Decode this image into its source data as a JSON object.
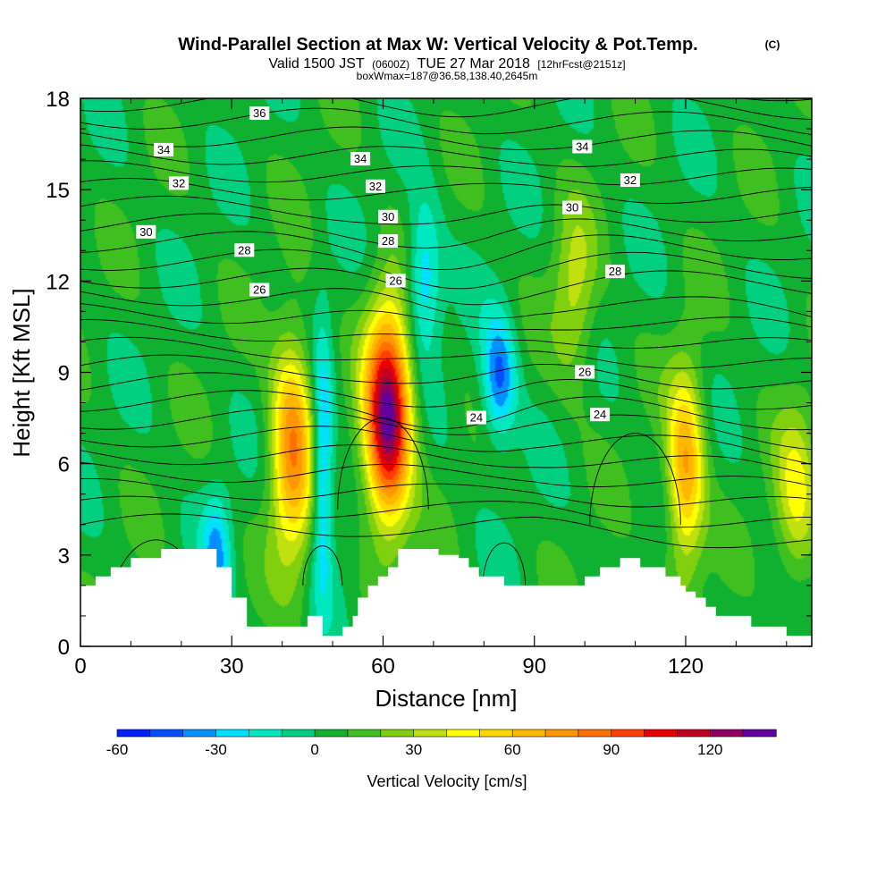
{
  "header": {
    "title": "Wind-Parallel Section at Max W: Vertical Velocity & Pot.Temp.",
    "copyright": "(C)",
    "valid_prefix": "Valid 1500 JST",
    "valid_utc": "(0600Z)",
    "valid_date": "TUE 27 Mar 2018",
    "forecast": "[12hrFcst@2151z]",
    "boxw": "boxWmax=187@36.58,138.40,2645m"
  },
  "colorbar": {
    "title": "Vertical Velocity [cm/s]",
    "tick_labels": [
      "-60",
      "-30",
      "0",
      "30",
      "60",
      "90",
      "120"
    ],
    "colors": [
      "#0020ff",
      "#0050ff",
      "#0090ff",
      "#00e0ff",
      "#00e8c0",
      "#00d080",
      "#10b030",
      "#40c020",
      "#80d010",
      "#c0e010",
      "#ffff00",
      "#ffd800",
      "#ffb800",
      "#ff9800",
      "#ff7000",
      "#ff4000",
      "#e80000",
      "#c00020",
      "#900060",
      "#6000a0"
    ]
  },
  "chart_data": {
    "type": "heatmap",
    "xlabel": "Distance [nm]",
    "ylabel": "Height [Kft MSL]",
    "xlim": [
      0,
      145
    ],
    "ylim": [
      0,
      18
    ],
    "x_ticks": [
      0,
      30,
      60,
      90,
      120
    ],
    "y_ticks": [
      0,
      3,
      6,
      9,
      12,
      15,
      18
    ],
    "background_value_cm_s": 5,
    "updraft_max_cm_s": 130,
    "plumes": [
      {
        "x": 61,
        "y": 7.5,
        "w_cm_s": 130,
        "sx": 3.2,
        "sy": 2.4
      },
      {
        "x": 42,
        "y": 6.5,
        "w_cm_s": 72,
        "sx": 3.0,
        "sy": 2.6
      },
      {
        "x": 120,
        "y": 5.8,
        "w_cm_s": 66,
        "sx": 2.6,
        "sy": 2.3
      },
      {
        "x": 48,
        "y": 6.0,
        "w_cm_s": -45,
        "sx": 1.5,
        "sy": 3.0
      },
      {
        "x": 83,
        "y": 8.8,
        "w_cm_s": -48,
        "sx": 2.4,
        "sy": 1.5
      },
      {
        "x": 68,
        "y": 12.0,
        "w_cm_s": -38,
        "sx": 2.4,
        "sy": 1.8
      },
      {
        "x": 27,
        "y": 3.0,
        "w_cm_s": -35,
        "sx": 2.0,
        "sy": 1.4
      },
      {
        "x": 142,
        "y": 4.8,
        "w_cm_s": 38,
        "sx": 3.0,
        "sy": 2.0
      },
      {
        "x": 98,
        "y": 11.5,
        "w_cm_s": 30,
        "sx": 3.0,
        "sy": 2.0
      }
    ],
    "terrain": {
      "x": [
        0,
        3,
        6,
        10,
        16,
        23,
        27,
        30,
        33,
        39,
        45,
        48,
        50,
        52,
        54,
        55,
        57,
        59,
        61,
        63,
        65,
        68,
        71,
        75,
        77,
        79,
        84,
        87,
        89,
        92,
        96,
        100,
        103,
        107,
        111,
        116,
        119,
        120,
        122,
        124,
        126,
        129,
        133,
        136,
        139,
        140,
        142,
        145
      ],
      "height_kft": [
        2.0,
        2.3,
        2.6,
        2.9,
        3.2,
        3.2,
        2.6,
        1.6,
        0.65,
        0.65,
        1.0,
        0.35,
        0.35,
        0.65,
        1.0,
        1.6,
        2.0,
        2.3,
        2.6,
        3.2,
        3.2,
        3.2,
        3.0,
        2.9,
        2.6,
        2.3,
        2.0,
        2.0,
        2.0,
        2.0,
        2.0,
        2.3,
        2.6,
        2.9,
        2.6,
        2.3,
        2.0,
        1.8,
        1.6,
        1.3,
        1.0,
        1.0,
        0.65,
        0.65,
        0.65,
        0.35,
        0.35,
        0.35
      ]
    },
    "contour_labels": [
      {
        "value": "36",
        "x": 35.5,
        "y": 17.5
      },
      {
        "value": "34",
        "x": 16.5,
        "y": 16.3
      },
      {
        "value": "34",
        "x": 55.5,
        "y": 16.0
      },
      {
        "value": "34",
        "x": 99.5,
        "y": 16.4
      },
      {
        "value": "32",
        "x": 19.5,
        "y": 15.2
      },
      {
        "value": "32",
        "x": 58.5,
        "y": 15.1
      },
      {
        "value": "32",
        "x": 109,
        "y": 15.3
      },
      {
        "value": "30",
        "x": 13,
        "y": 13.6
      },
      {
        "value": "30",
        "x": 61,
        "y": 14.1
      },
      {
        "value": "30",
        "x": 97.5,
        "y": 14.4
      },
      {
        "value": "28",
        "x": 32.5,
        "y": 13.0
      },
      {
        "value": "28",
        "x": 61,
        "y": 13.3
      },
      {
        "value": "28",
        "x": 106,
        "y": 12.3
      },
      {
        "value": "26",
        "x": 35.5,
        "y": 11.7
      },
      {
        "value": "26",
        "x": 62.5,
        "y": 12.0
      },
      {
        "value": "26",
        "x": 100,
        "y": 9.0
      },
      {
        "value": "24",
        "x": 78.5,
        "y": 7.5
      },
      {
        "value": "24",
        "x": 103,
        "y": 7.6
      }
    ]
  }
}
